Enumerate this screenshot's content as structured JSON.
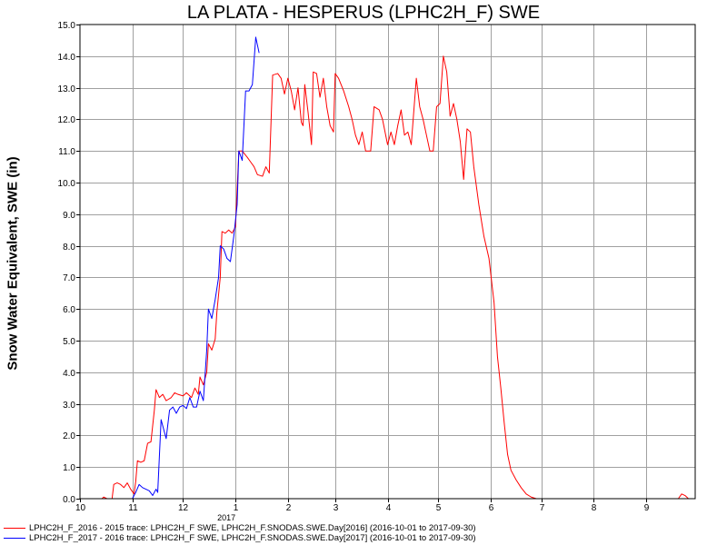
{
  "chart_data": {
    "type": "line",
    "title": "LA PLATA - HESPERUS (LPHC2H_F) SWE",
    "ylabel": "Snow Water Equivalent, SWE (in)",
    "xlabel": "",
    "ylim": [
      0,
      15
    ],
    "xlim": [
      "2016-10-01",
      "2017-09-30"
    ],
    "yticks": [
      0.0,
      1.0,
      2.0,
      3.0,
      4.0,
      5.0,
      6.0,
      7.0,
      8.0,
      9.0,
      10.0,
      11.0,
      12.0,
      13.0,
      14.0,
      15.0
    ],
    "yticks_labels": [
      "0.0",
      "1.0",
      "2.0",
      "3.0",
      "4.0",
      "5.0",
      "6.0",
      "7.0",
      "8.0",
      "9.0",
      "10.0",
      "11.0",
      "12.0",
      "13.0",
      "14.0",
      "15.0"
    ],
    "xticks": [
      {
        "date": "2016-10-01",
        "label": "10"
      },
      {
        "date": "2016-11-01",
        "label": "11"
      },
      {
        "date": "2016-12-01",
        "label": "12"
      },
      {
        "date": "2017-01-01",
        "label": "1"
      },
      {
        "date": "2017-02-01",
        "label": "2"
      },
      {
        "date": "2017-03-01",
        "label": "3"
      },
      {
        "date": "2017-04-01",
        "label": "4"
      },
      {
        "date": "2017-05-01",
        "label": "5"
      },
      {
        "date": "2017-06-01",
        "label": "6"
      },
      {
        "date": "2017-07-01",
        "label": "7"
      },
      {
        "date": "2017-08-01",
        "label": "8"
      },
      {
        "date": "2017-09-01",
        "label": "9"
      }
    ],
    "year_label": {
      "date": "2017-01-01",
      "text": "2017"
    },
    "grid": true,
    "legend_position": "bottom-left",
    "series": [
      {
        "name": "LPHC2H_F_2016 - 2015 trace: LPHC2H_F SWE, LPHC2H_F.SNODAS.SWE.Day[2016] (2016-10-01 to 2017-09-30)",
        "color": "#ff0000",
        "points": [
          [
            "2016-10-01",
            0.0
          ],
          [
            "2016-10-14",
            0.0
          ],
          [
            "2016-10-15",
            0.05
          ],
          [
            "2016-10-17",
            0.0
          ],
          [
            "2016-10-20",
            0.0
          ],
          [
            "2016-10-21",
            0.45
          ],
          [
            "2016-10-23",
            0.5
          ],
          [
            "2016-10-25",
            0.45
          ],
          [
            "2016-10-27",
            0.35
          ],
          [
            "2016-10-29",
            0.5
          ],
          [
            "2016-10-31",
            0.3
          ],
          [
            "2016-11-02",
            0.15
          ],
          [
            "2016-11-03",
            0.55
          ],
          [
            "2016-11-04",
            1.2
          ],
          [
            "2016-11-06",
            1.15
          ],
          [
            "2016-11-08",
            1.2
          ],
          [
            "2016-11-10",
            1.75
          ],
          [
            "2016-11-12",
            1.8
          ],
          [
            "2016-11-14",
            2.8
          ],
          [
            "2016-11-15",
            3.45
          ],
          [
            "2016-11-17",
            3.2
          ],
          [
            "2016-11-19",
            3.3
          ],
          [
            "2016-11-21",
            3.1
          ],
          [
            "2016-11-24",
            3.2
          ],
          [
            "2016-11-26",
            3.35
          ],
          [
            "2016-11-28",
            3.3
          ],
          [
            "2016-12-01",
            3.25
          ],
          [
            "2016-12-03",
            3.35
          ],
          [
            "2016-12-06",
            3.2
          ],
          [
            "2016-12-08",
            3.5
          ],
          [
            "2016-12-10",
            3.3
          ],
          [
            "2016-12-11",
            3.85
          ],
          [
            "2016-12-13",
            3.6
          ],
          [
            "2016-12-15",
            4.0
          ],
          [
            "2016-12-16",
            4.9
          ],
          [
            "2016-12-18",
            4.7
          ],
          [
            "2016-12-20",
            5.05
          ],
          [
            "2016-12-21",
            5.9
          ],
          [
            "2016-12-23",
            7.0
          ],
          [
            "2016-12-24",
            8.45
          ],
          [
            "2016-12-26",
            8.4
          ],
          [
            "2016-12-28",
            8.5
          ],
          [
            "2016-12-30",
            8.4
          ],
          [
            "2017-01-01",
            8.6
          ],
          [
            "2017-01-02",
            9.8
          ],
          [
            "2017-01-03",
            11.0
          ],
          [
            "2017-01-05",
            11.0
          ],
          [
            "2017-01-08",
            10.8
          ],
          [
            "2017-01-10",
            10.65
          ],
          [
            "2017-01-12",
            10.5
          ],
          [
            "2017-01-14",
            10.25
          ],
          [
            "2017-01-17",
            10.2
          ],
          [
            "2017-01-19",
            10.5
          ],
          [
            "2017-01-21",
            10.3
          ],
          [
            "2017-01-23",
            13.4
          ],
          [
            "2017-01-26",
            13.45
          ],
          [
            "2017-01-28",
            13.3
          ],
          [
            "2017-01-30",
            12.8
          ],
          [
            "2017-02-01",
            13.3
          ],
          [
            "2017-02-03",
            12.9
          ],
          [
            "2017-02-05",
            12.3
          ],
          [
            "2017-02-07",
            13.0
          ],
          [
            "2017-02-09",
            11.9
          ],
          [
            "2017-02-10",
            11.8
          ],
          [
            "2017-02-11",
            13.1
          ],
          [
            "2017-02-13",
            12.2
          ],
          [
            "2017-02-15",
            11.2
          ],
          [
            "2017-02-16",
            13.5
          ],
          [
            "2017-02-18",
            13.45
          ],
          [
            "2017-02-20",
            12.7
          ],
          [
            "2017-02-22",
            13.3
          ],
          [
            "2017-02-24",
            12.4
          ],
          [
            "2017-02-26",
            11.8
          ],
          [
            "2017-02-28",
            11.6
          ],
          [
            "2017-03-01",
            13.45
          ],
          [
            "2017-03-03",
            13.3
          ],
          [
            "2017-03-06",
            12.9
          ],
          [
            "2017-03-09",
            12.4
          ],
          [
            "2017-03-11",
            12.0
          ],
          [
            "2017-03-13",
            11.5
          ],
          [
            "2017-03-15",
            11.2
          ],
          [
            "2017-03-17",
            11.6
          ],
          [
            "2017-03-19",
            11.0
          ],
          [
            "2017-03-22",
            11.0
          ],
          [
            "2017-03-24",
            12.4
          ],
          [
            "2017-03-27",
            12.3
          ],
          [
            "2017-03-29",
            12.0
          ],
          [
            "2017-04-01",
            11.2
          ],
          [
            "2017-04-03",
            11.6
          ],
          [
            "2017-04-05",
            11.2
          ],
          [
            "2017-04-07",
            11.8
          ],
          [
            "2017-04-09",
            12.3
          ],
          [
            "2017-04-11",
            11.5
          ],
          [
            "2017-04-13",
            11.6
          ],
          [
            "2017-04-15",
            11.2
          ],
          [
            "2017-04-17",
            12.6
          ],
          [
            "2017-04-18",
            13.3
          ],
          [
            "2017-04-20",
            12.4
          ],
          [
            "2017-04-22",
            12.0
          ],
          [
            "2017-04-24",
            11.5
          ],
          [
            "2017-04-26",
            11.0
          ],
          [
            "2017-04-28",
            11.0
          ],
          [
            "2017-04-30",
            12.4
          ],
          [
            "2017-05-02",
            12.5
          ],
          [
            "2017-05-04",
            14.0
          ],
          [
            "2017-05-06",
            13.5
          ],
          [
            "2017-05-08",
            12.1
          ],
          [
            "2017-05-10",
            12.5
          ],
          [
            "2017-05-12",
            12.0
          ],
          [
            "2017-05-14",
            11.3
          ],
          [
            "2017-05-16",
            10.1
          ],
          [
            "2017-05-18",
            11.7
          ],
          [
            "2017-05-20",
            11.6
          ],
          [
            "2017-05-22",
            10.5
          ],
          [
            "2017-05-25",
            9.3
          ],
          [
            "2017-05-28",
            8.3
          ],
          [
            "2017-05-31",
            7.6
          ],
          [
            "2017-06-03",
            6.2
          ],
          [
            "2017-06-05",
            4.5
          ],
          [
            "2017-06-07",
            3.5
          ],
          [
            "2017-06-09",
            2.4
          ],
          [
            "2017-06-11",
            1.4
          ],
          [
            "2017-06-13",
            0.9
          ],
          [
            "2017-06-16",
            0.6
          ],
          [
            "2017-06-19",
            0.35
          ],
          [
            "2017-06-22",
            0.15
          ],
          [
            "2017-06-25",
            0.05
          ],
          [
            "2017-06-28",
            0.0
          ],
          [
            "2017-09-20",
            0.0
          ],
          [
            "2017-09-22",
            0.15
          ],
          [
            "2017-09-24",
            0.1
          ],
          [
            "2017-09-26",
            0.0
          ],
          [
            "2017-09-30",
            0.0
          ]
        ]
      },
      {
        "name": "LPHC2H_F_2017 - 2016 trace: LPHC2H_F SWE, LPHC2H_F.SNODAS.SWE.Day[2017] (2016-10-01 to 2017-09-30)",
        "color": "#0000ff",
        "points": [
          [
            "2016-11-01",
            0.0
          ],
          [
            "2016-11-03",
            0.2
          ],
          [
            "2016-11-05",
            0.45
          ],
          [
            "2016-11-07",
            0.35
          ],
          [
            "2016-11-09",
            0.3
          ],
          [
            "2016-11-11",
            0.25
          ],
          [
            "2016-11-13",
            0.1
          ],
          [
            "2016-11-15",
            0.3
          ],
          [
            "2016-11-16",
            0.2
          ],
          [
            "2016-11-18",
            2.5
          ],
          [
            "2016-11-19",
            2.3
          ],
          [
            "2016-11-21",
            1.9
          ],
          [
            "2016-11-23",
            2.8
          ],
          [
            "2016-11-25",
            2.9
          ],
          [
            "2016-11-27",
            2.7
          ],
          [
            "2016-11-29",
            2.9
          ],
          [
            "2016-12-01",
            2.95
          ],
          [
            "2016-12-03",
            2.85
          ],
          [
            "2016-12-05",
            3.2
          ],
          [
            "2016-12-07",
            2.9
          ],
          [
            "2016-12-09",
            2.9
          ],
          [
            "2016-12-11",
            3.4
          ],
          [
            "2016-12-13",
            3.1
          ],
          [
            "2016-12-15",
            4.7
          ],
          [
            "2016-12-16",
            6.0
          ],
          [
            "2016-12-18",
            5.7
          ],
          [
            "2016-12-20",
            6.3
          ],
          [
            "2016-12-22",
            7.0
          ],
          [
            "2016-12-23",
            8.0
          ],
          [
            "2016-12-25",
            7.9
          ],
          [
            "2016-12-27",
            7.6
          ],
          [
            "2016-12-29",
            7.5
          ],
          [
            "2016-12-31",
            8.3
          ],
          [
            "2017-01-02",
            9.3
          ],
          [
            "2017-01-03",
            11.0
          ],
          [
            "2017-01-05",
            10.7
          ],
          [
            "2017-01-07",
            12.9
          ],
          [
            "2017-01-09",
            12.9
          ],
          [
            "2017-01-11",
            13.1
          ],
          [
            "2017-01-13",
            14.6
          ],
          [
            "2017-01-15",
            14.1
          ]
        ]
      }
    ]
  },
  "legend": {
    "items": [
      {
        "label": "LPHC2H_F_2016 - 2015 trace: LPHC2H_F SWE, LPHC2H_F.SNODAS.SWE.Day[2016] (2016-10-01 to 2017-09-30)",
        "color": "#ff0000"
      },
      {
        "label": "LPHC2H_F_2017 - 2016 trace: LPHC2H_F SWE, LPHC2H_F.SNODAS.SWE.Day[2017] (2016-10-01 to 2017-09-30)",
        "color": "#0000ff"
      }
    ]
  }
}
